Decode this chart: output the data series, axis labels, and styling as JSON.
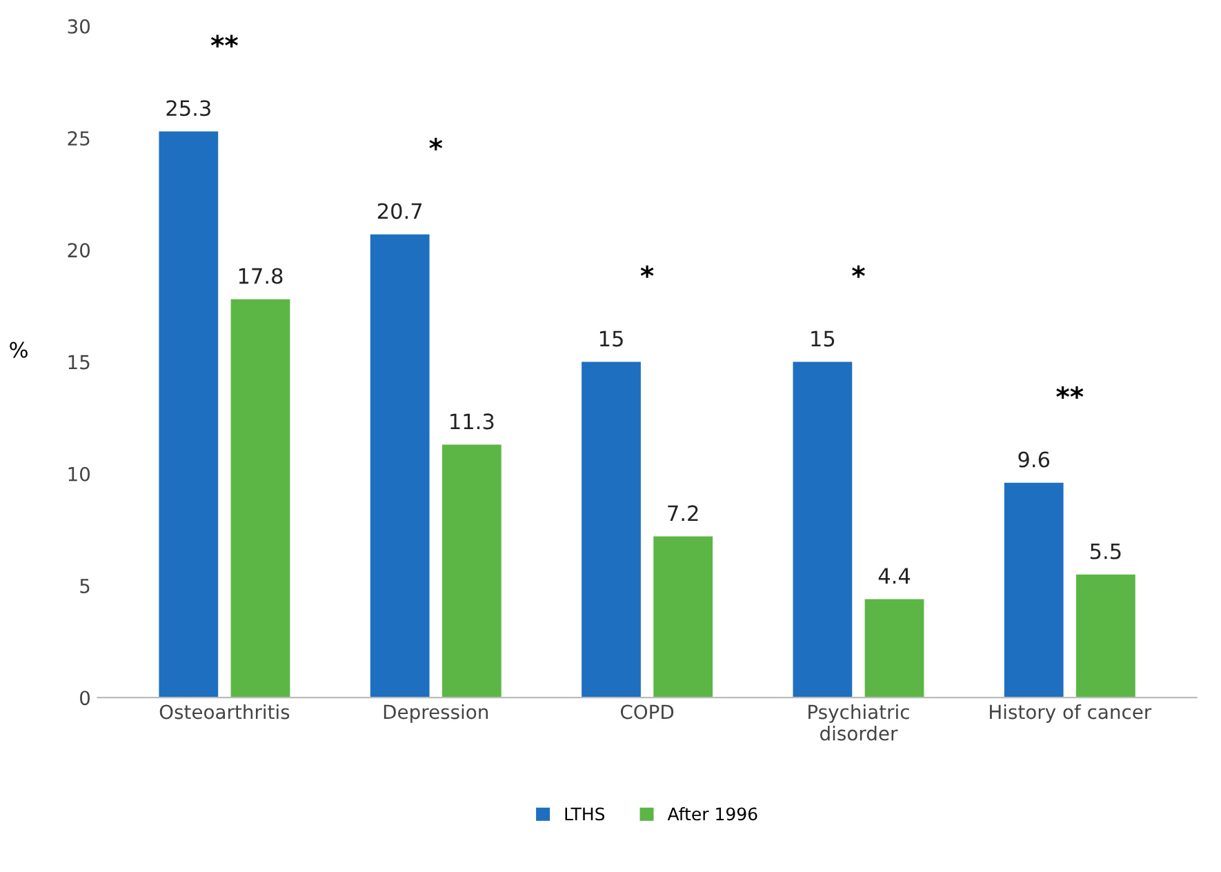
{
  "chart_data": {
    "type": "bar",
    "ylabel": "%",
    "categories": [
      "Osteoarthritis",
      "Depression",
      "COPD",
      "Psychiatric\ndisorder",
      "History of cancer"
    ],
    "series": [
      {
        "name": "LTHS",
        "color": "#1f6fc1",
        "values": [
          25.3,
          20.7,
          15,
          15,
          9.6
        ]
      },
      {
        "name": "After 1996",
        "color": "#5cb646",
        "values": [
          17.8,
          11.3,
          7.2,
          4.4,
          5.5
        ]
      }
    ],
    "ylim": [
      0,
      30
    ],
    "yticks": [
      0,
      5,
      10,
      15,
      20,
      25,
      30
    ],
    "grid": false,
    "legend": "bottom",
    "data_labels": true,
    "annotations": [
      "**",
      "*",
      "*",
      "*",
      "**"
    ]
  }
}
